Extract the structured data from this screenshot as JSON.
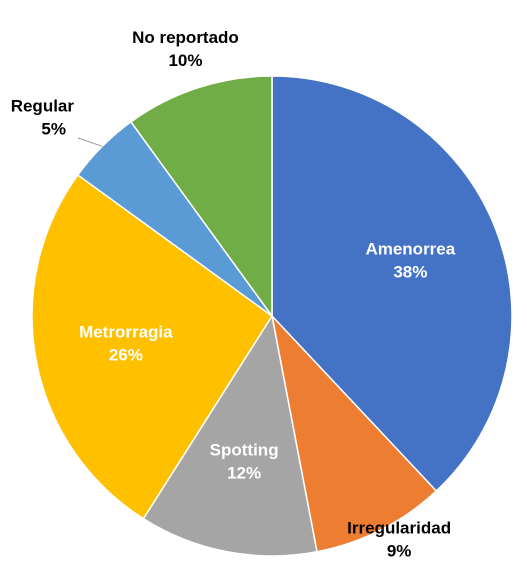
{
  "chart_data": {
    "type": "pie",
    "categories": [
      "Amenorrea",
      "Irregularidad",
      "Spotting",
      "Metrorragia",
      "Regular",
      "No reportado"
    ],
    "values": [
      38,
      9,
      12,
      26,
      5,
      10
    ],
    "value_labels": [
      "38%",
      "9%",
      "12%",
      "26%",
      "5%",
      "10%"
    ],
    "colors": [
      "#4472c4",
      "#ed7d31",
      "#a5a5a5",
      "#ffc000",
      "#5b9bd5",
      "#70ad47"
    ]
  }
}
